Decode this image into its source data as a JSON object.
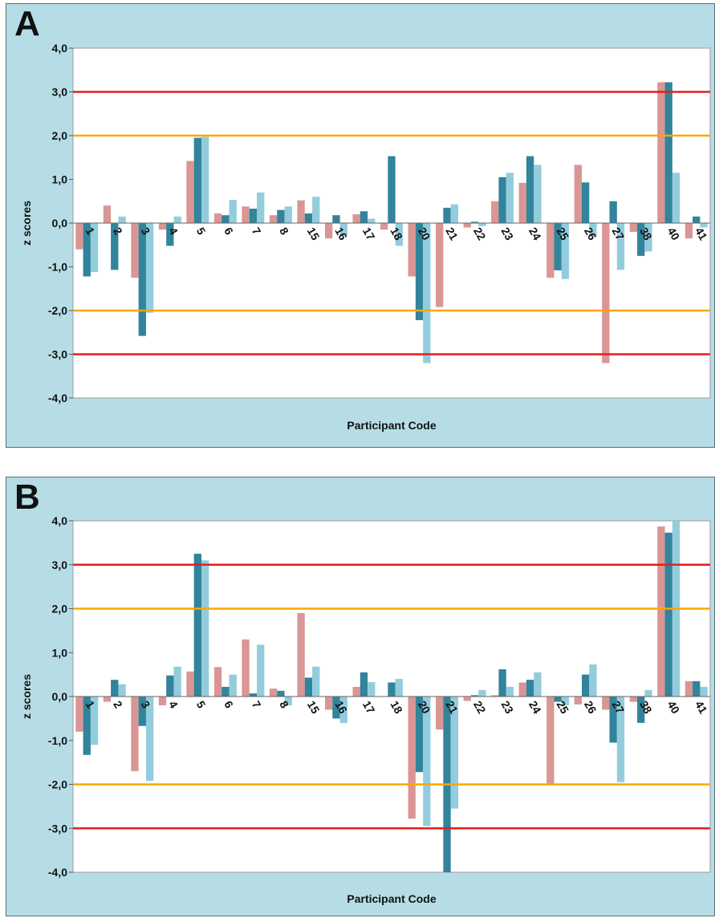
{
  "colors": {
    "series1": "#d99694",
    "series2": "#31849b",
    "series3": "#93cddd",
    "red_line": "#e81c1c",
    "orange_line": "#ffa500",
    "panel_bg": "#b6dde6",
    "plot_bg": "#ffffff"
  },
  "chart_data": [
    {
      "panel_label": "A",
      "type": "bar",
      "xlabel": "Participant Code",
      "ylabel": "z scores",
      "ylim": [
        -4,
        4
      ],
      "yticks": [
        "-4,0",
        "-3,0",
        "-2,0",
        "-1,0",
        "0,0",
        "1,0",
        "2,0",
        "3,0",
        "4,0"
      ],
      "reference_lines": [
        {
          "y": 3,
          "color": "red"
        },
        {
          "y": 2,
          "color": "orange"
        },
        {
          "y": -2,
          "color": "orange"
        },
        {
          "y": -3,
          "color": "red"
        }
      ],
      "categories": [
        "1",
        "2",
        "3",
        "4",
        "5",
        "6",
        "7",
        "8",
        "15",
        "16",
        "17",
        "18",
        "20",
        "21",
        "22",
        "23",
        "24",
        "25",
        "26",
        "27",
        "38",
        "40",
        "41"
      ],
      "series": [
        {
          "values": [
            -0.6,
            0.4,
            -1.25,
            -0.15,
            1.42,
            0.22,
            0.38,
            0.18,
            0.52,
            -0.35,
            0.2,
            -0.15,
            -1.22,
            -1.92,
            -0.1,
            0.5,
            0.92,
            -1.25,
            1.33,
            -3.2,
            -0.2,
            3.22,
            -0.35
          ]
        },
        {
          "values": [
            -1.22,
            -1.07,
            -2.58,
            -0.52,
            1.95,
            0.18,
            0.33,
            0.3,
            0.22,
            0.18,
            0.27,
            1.53,
            -2.22,
            0.35,
            0.03,
            1.05,
            1.53,
            -1.08,
            0.93,
            0.5,
            -0.75,
            3.22,
            0.15
          ]
        },
        {
          "values": [
            -1.12,
            0.15,
            -2.05,
            0.15,
            1.97,
            0.53,
            0.7,
            0.38,
            0.6,
            -0.28,
            0.1,
            -0.52,
            -3.2,
            0.43,
            -0.07,
            1.15,
            1.33,
            -1.28,
            -0.3,
            -1.07,
            -0.65,
            1.15,
            -0.1
          ]
        }
      ]
    },
    {
      "panel_label": "B",
      "type": "bar",
      "xlabel": "Participant Code",
      "ylabel": "z scores",
      "ylim": [
        -4,
        4
      ],
      "yticks": [
        "-4,0",
        "-3,0",
        "-2,0",
        "-1,0",
        "0,0",
        "1,0",
        "2,0",
        "3,0",
        "4,0"
      ],
      "reference_lines": [
        {
          "y": 3,
          "color": "red"
        },
        {
          "y": 2,
          "color": "orange"
        },
        {
          "y": -2,
          "color": "orange"
        },
        {
          "y": -3,
          "color": "red"
        }
      ],
      "categories": [
        "1",
        "2",
        "3",
        "4",
        "5",
        "6",
        "7",
        "8",
        "15",
        "16",
        "17",
        "18",
        "20",
        "21",
        "22",
        "23",
        "24",
        "25",
        "26",
        "27",
        "38",
        "40",
        "41"
      ],
      "series": [
        {
          "values": [
            -0.8,
            -0.12,
            -1.7,
            -0.2,
            0.57,
            0.67,
            1.3,
            0.18,
            1.9,
            -0.3,
            0.22,
            0.0,
            -2.78,
            -0.75,
            -0.1,
            0.03,
            0.32,
            -2.0,
            -0.18,
            -0.3,
            -0.12,
            3.87,
            0.35
          ]
        },
        {
          "values": [
            -1.33,
            0.38,
            -0.67,
            0.48,
            3.25,
            0.22,
            0.07,
            0.13,
            0.43,
            -0.5,
            0.55,
            0.32,
            -1.72,
            -4.0,
            0.03,
            0.62,
            0.38,
            -0.12,
            0.5,
            -1.05,
            -0.6,
            3.73,
            0.35
          ]
        },
        {
          "values": [
            -1.1,
            0.28,
            -1.92,
            0.68,
            3.1,
            0.5,
            1.18,
            -0.2,
            0.68,
            -0.6,
            0.33,
            0.4,
            -2.95,
            -2.55,
            0.15,
            0.22,
            0.55,
            -0.2,
            0.73,
            -1.95,
            0.15,
            4.05,
            0.22
          ]
        }
      ]
    }
  ]
}
